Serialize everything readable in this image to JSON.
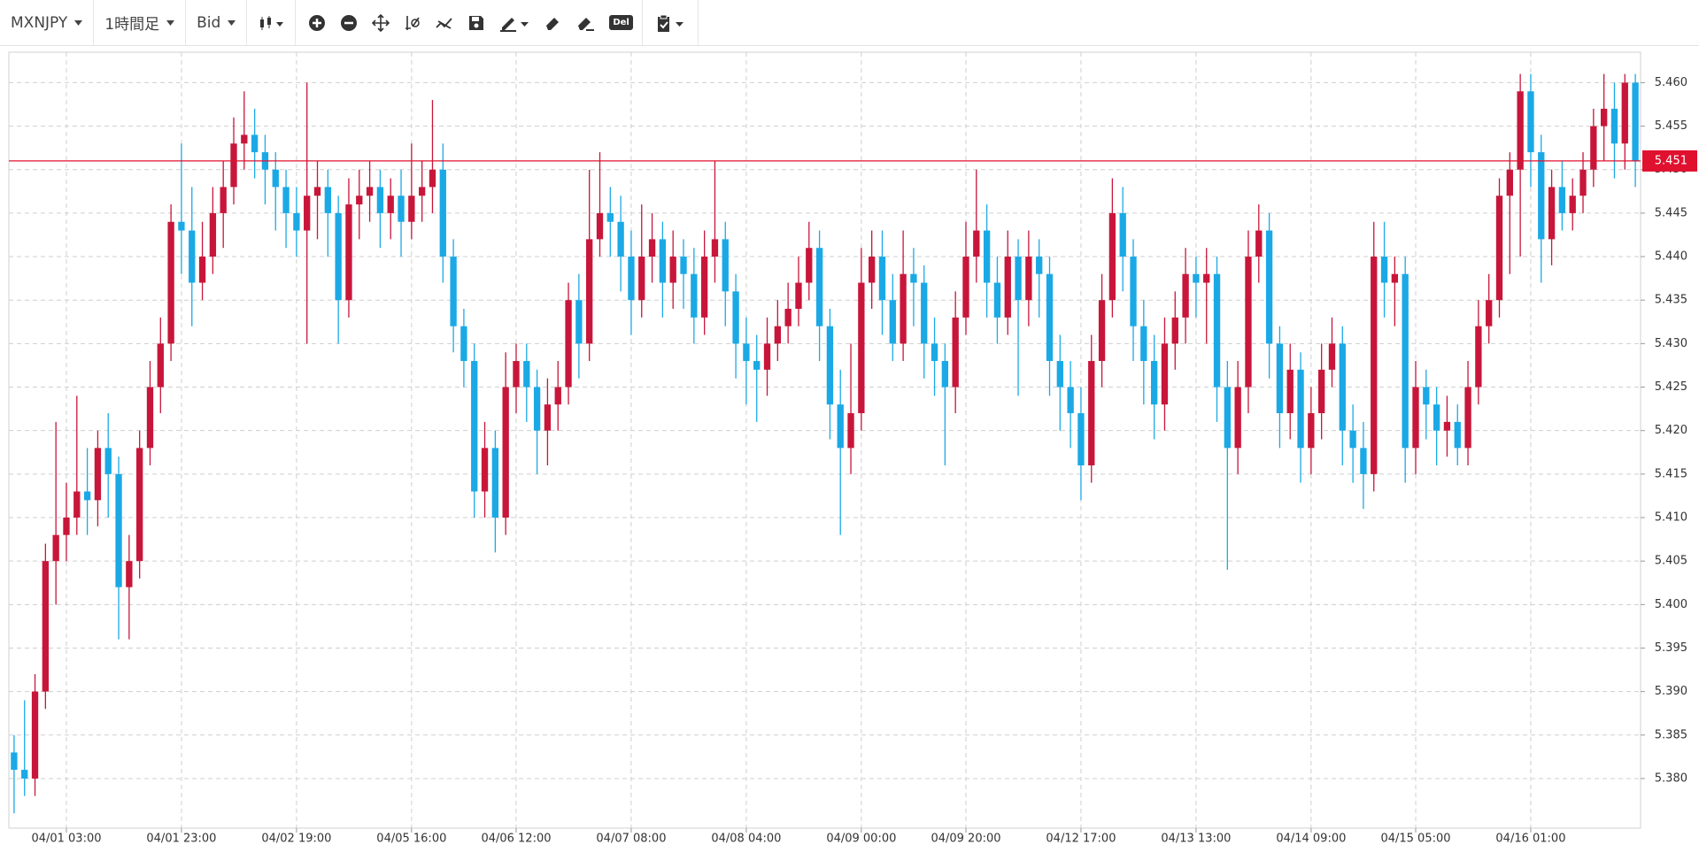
{
  "toolbar": {
    "symbol": "MXNJPY",
    "timeframe": "1時間足",
    "price_type": "Bid",
    "delete": "Del"
  },
  "chart_data": {
    "type": "candlestick",
    "categories": [
      null,
      null,
      null,
      null,
      null,
      "04/01 03:00",
      null,
      null,
      null,
      null,
      null,
      null,
      null,
      null,
      null,
      null,
      "04/01 23:00",
      null,
      null,
      null,
      null,
      null,
      null,
      null,
      null,
      null,
      null,
      "04/02 19:00",
      null,
      null,
      null,
      null,
      null,
      null,
      null,
      null,
      null,
      null,
      "04/05 16:00",
      null,
      null,
      null,
      null,
      null,
      null,
      null,
      null,
      null,
      "04/06 12:00",
      null,
      null,
      null,
      null,
      null,
      null,
      null,
      null,
      null,
      null,
      "04/07 08:00",
      null,
      null,
      null,
      null,
      null,
      null,
      null,
      null,
      null,
      null,
      "04/08 04:00",
      null,
      null,
      null,
      null,
      null,
      null,
      null,
      null,
      null,
      null,
      "04/09 00:00",
      null,
      null,
      null,
      null,
      null,
      null,
      null,
      null,
      null,
      "04/09 20:00",
      null,
      null,
      null,
      null,
      null,
      null,
      null,
      null,
      null,
      null,
      "04/12 17:00",
      null,
      null,
      null,
      null,
      null,
      null,
      null,
      null,
      null,
      null,
      "04/13 13:00",
      null,
      null,
      null,
      null,
      null,
      null,
      null,
      null,
      null,
      null,
      "04/14 09:00",
      null,
      null,
      null,
      null,
      null,
      null,
      null,
      null,
      null,
      "04/15 05:00",
      null,
      null,
      null,
      null,
      null,
      null,
      null,
      null,
      null,
      null,
      "04/16 01:00",
      null,
      null,
      null,
      null,
      null,
      null,
      null,
      null,
      null,
      null
    ],
    "open": [
      5.383,
      5.381,
      5.38,
      5.39,
      5.405,
      5.408,
      5.41,
      5.413,
      5.412,
      5.418,
      5.415,
      5.402,
      5.405,
      5.418,
      5.425,
      5.43,
      5.444,
      5.443,
      5.437,
      5.44,
      5.445,
      5.448,
      5.453,
      5.454,
      5.452,
      5.45,
      5.448,
      5.445,
      5.443,
      5.447,
      5.448,
      5.445,
      5.435,
      5.446,
      5.447,
      5.448,
      5.445,
      5.447,
      5.444,
      5.447,
      5.448,
      5.45,
      5.44,
      5.432,
      5.428,
      5.413,
      5.418,
      5.41,
      5.425,
      5.428,
      5.425,
      5.42,
      5.423,
      5.425,
      5.435,
      5.43,
      5.442,
      5.445,
      5.444,
      5.44,
      5.435,
      5.44,
      5.442,
      5.437,
      5.44,
      5.438,
      5.433,
      5.44,
      5.442,
      5.436,
      5.43,
      5.428,
      5.427,
      5.43,
      5.432,
      5.434,
      5.437,
      5.441,
      5.432,
      5.423,
      5.418,
      5.422,
      5.437,
      5.44,
      5.435,
      5.43,
      5.438,
      5.437,
      5.43,
      5.428,
      5.425,
      5.433,
      5.44,
      5.443,
      5.437,
      5.433,
      5.44,
      5.435,
      5.44,
      5.438,
      5.428,
      5.425,
      5.422,
      5.416,
      5.428,
      5.435,
      5.445,
      5.44,
      5.432,
      5.428,
      5.423,
      5.43,
      5.433,
      5.438,
      5.437,
      5.438,
      5.425,
      5.418,
      5.425,
      5.44,
      5.443,
      5.43,
      5.422,
      5.427,
      5.418,
      5.422,
      5.427,
      5.43,
      5.42,
      5.418,
      5.415,
      5.44,
      5.437,
      5.438,
      5.418,
      5.425,
      5.423,
      5.42,
      5.421,
      5.418,
      5.425,
      5.432,
      5.435,
      5.447,
      5.45,
      5.459,
      5.452,
      5.442,
      5.448,
      5.445,
      5.447,
      5.45,
      5.455,
      5.457,
      5.453,
      5.46
    ],
    "high": [
      5.385,
      5.389,
      5.392,
      5.407,
      5.421,
      5.414,
      5.424,
      5.418,
      5.42,
      5.422,
      5.417,
      5.408,
      5.42,
      5.428,
      5.433,
      5.446,
      5.453,
      5.448,
      5.444,
      5.448,
      5.451,
      5.456,
      5.459,
      5.457,
      5.454,
      5.452,
      5.45,
      5.448,
      5.46,
      5.451,
      5.45,
      5.447,
      5.449,
      5.45,
      5.451,
      5.45,
      5.449,
      5.45,
      5.453,
      5.451,
      5.458,
      5.453,
      5.442,
      5.434,
      5.43,
      5.421,
      5.42,
      5.429,
      5.43,
      5.43,
      5.427,
      5.426,
      5.428,
      5.437,
      5.438,
      5.45,
      5.452,
      5.448,
      5.447,
      5.443,
      5.446,
      5.445,
      5.444,
      5.443,
      5.442,
      5.441,
      5.443,
      5.451,
      5.444,
      5.438,
      5.433,
      5.431,
      5.433,
      5.435,
      5.437,
      5.44,
      5.444,
      5.443,
      5.434,
      5.427,
      5.43,
      5.441,
      5.443,
      5.443,
      5.438,
      5.443,
      5.441,
      5.439,
      5.433,
      5.43,
      5.436,
      5.444,
      5.45,
      5.446,
      5.44,
      5.443,
      5.442,
      5.443,
      5.442,
      5.44,
      5.431,
      5.428,
      5.425,
      5.431,
      5.438,
      5.449,
      5.448,
      5.442,
      5.435,
      5.431,
      5.433,
      5.436,
      5.441,
      5.44,
      5.441,
      5.44,
      5.428,
      5.428,
      5.443,
      5.446,
      5.445,
      5.432,
      5.43,
      5.429,
      5.425,
      5.43,
      5.433,
      5.432,
      5.423,
      5.421,
      5.444,
      5.444,
      5.44,
      5.44,
      5.428,
      5.427,
      5.425,
      5.424,
      5.423,
      5.428,
      5.435,
      5.438,
      5.449,
      5.452,
      5.461,
      5.461,
      5.454,
      5.45,
      5.451,
      5.449,
      5.452,
      5.457,
      5.461,
      5.46,
      5.461,
      5.461
    ],
    "low": [
      5.376,
      5.378,
      5.378,
      5.388,
      5.4,
      5.405,
      5.408,
      5.408,
      5.409,
      5.41,
      5.396,
      5.396,
      5.403,
      5.416,
      5.422,
      5.428,
      5.438,
      5.432,
      5.435,
      5.438,
      5.441,
      5.446,
      5.45,
      5.449,
      5.446,
      5.443,
      5.441,
      5.44,
      5.43,
      5.442,
      5.44,
      5.43,
      5.433,
      5.442,
      5.444,
      5.441,
      5.442,
      5.44,
      5.442,
      5.444,
      5.445,
      5.437,
      5.429,
      5.425,
      5.41,
      5.41,
      5.406,
      5.408,
      5.422,
      5.421,
      5.415,
      5.416,
      5.42,
      5.423,
      5.426,
      5.428,
      5.44,
      5.44,
      5.436,
      5.431,
      5.433,
      5.437,
      5.433,
      5.434,
      5.434,
      5.43,
      5.431,
      5.437,
      5.432,
      5.426,
      5.423,
      5.421,
      5.424,
      5.428,
      5.43,
      5.432,
      5.435,
      5.428,
      5.419,
      5.408,
      5.415,
      5.42,
      5.434,
      5.431,
      5.428,
      5.428,
      5.432,
      5.426,
      5.424,
      5.416,
      5.422,
      5.431,
      5.437,
      5.433,
      5.43,
      5.431,
      5.424,
      5.432,
      5.433,
      5.424,
      5.42,
      5.418,
      5.412,
      5.414,
      5.425,
      5.433,
      5.436,
      5.428,
      5.423,
      5.419,
      5.42,
      5.427,
      5.43,
      5.433,
      5.43,
      5.421,
      5.404,
      5.415,
      5.422,
      5.437,
      5.426,
      5.418,
      5.419,
      5.414,
      5.415,
      5.419,
      5.425,
      5.416,
      5.414,
      5.411,
      5.413,
      5.433,
      5.432,
      5.414,
      5.415,
      5.419,
      5.416,
      5.417,
      5.416,
      5.416,
      5.423,
      5.43,
      5.433,
      5.438,
      5.44,
      5.448,
      5.437,
      5.439,
      5.443,
      5.443,
      5.445,
      5.448,
      5.451,
      5.449,
      5.45,
      5.448
    ],
    "close": [
      5.381,
      5.38,
      5.39,
      5.405,
      5.408,
      5.41,
      5.413,
      5.412,
      5.418,
      5.415,
      5.402,
      5.405,
      5.418,
      5.425,
      5.43,
      5.444,
      5.443,
      5.437,
      5.44,
      5.445,
      5.448,
      5.453,
      5.454,
      5.452,
      5.45,
      5.448,
      5.445,
      5.443,
      5.447,
      5.448,
      5.445,
      5.435,
      5.446,
      5.447,
      5.448,
      5.445,
      5.447,
      5.444,
      5.447,
      5.448,
      5.45,
      5.44,
      5.432,
      5.428,
      5.413,
      5.418,
      5.41,
      5.425,
      5.428,
      5.425,
      5.42,
      5.423,
      5.425,
      5.435,
      5.43,
      5.442,
      5.445,
      5.444,
      5.44,
      5.435,
      5.44,
      5.442,
      5.437,
      5.44,
      5.438,
      5.433,
      5.44,
      5.442,
      5.436,
      5.43,
      5.428,
      5.427,
      5.43,
      5.432,
      5.434,
      5.437,
      5.441,
      5.432,
      5.423,
      5.418,
      5.422,
      5.437,
      5.44,
      5.435,
      5.43,
      5.438,
      5.437,
      5.43,
      5.428,
      5.425,
      5.433,
      5.44,
      5.443,
      5.437,
      5.433,
      5.44,
      5.435,
      5.44,
      5.438,
      5.428,
      5.425,
      5.422,
      5.416,
      5.428,
      5.435,
      5.445,
      5.44,
      5.432,
      5.428,
      5.423,
      5.43,
      5.433,
      5.438,
      5.437,
      5.438,
      5.425,
      5.418,
      5.425,
      5.44,
      5.443,
      5.43,
      5.422,
      5.427,
      5.418,
      5.422,
      5.427,
      5.43,
      5.42,
      5.418,
      5.415,
      5.44,
      5.437,
      5.438,
      5.418,
      5.425,
      5.423,
      5.42,
      5.421,
      5.418,
      5.425,
      5.432,
      5.435,
      5.447,
      5.45,
      5.459,
      5.452,
      5.442,
      5.448,
      5.445,
      5.447,
      5.45,
      5.455,
      5.457,
      5.453,
      5.46,
      5.451
    ],
    "up_color": "#c8163a",
    "down_color": "#1ba9e6",
    "ylim": [
      5.3743,
      5.4635
    ],
    "yticks": [
      {
        "value": 5.38,
        "label": "5.380"
      },
      5.385,
      {
        "value": 5.39,
        "label": "5.390"
      },
      5.395,
      {
        "value": 5.4,
        "label": "5.400"
      },
      5.405,
      {
        "value": 5.41,
        "label": "5.410"
      },
      5.415,
      {
        "value": 5.42,
        "label": "5.420"
      },
      5.425,
      {
        "value": 5.43,
        "label": "5.430"
      },
      5.435,
      {
        "value": 5.44,
        "label": "5.440"
      },
      5.445,
      {
        "value": 5.45,
        "label": "5.450"
      },
      5.455,
      {
        "value": 5.46,
        "label": "5.460"
      }
    ],
    "grid": true,
    "last_price": 5.451,
    "last_price_color": "#e0102f"
  }
}
